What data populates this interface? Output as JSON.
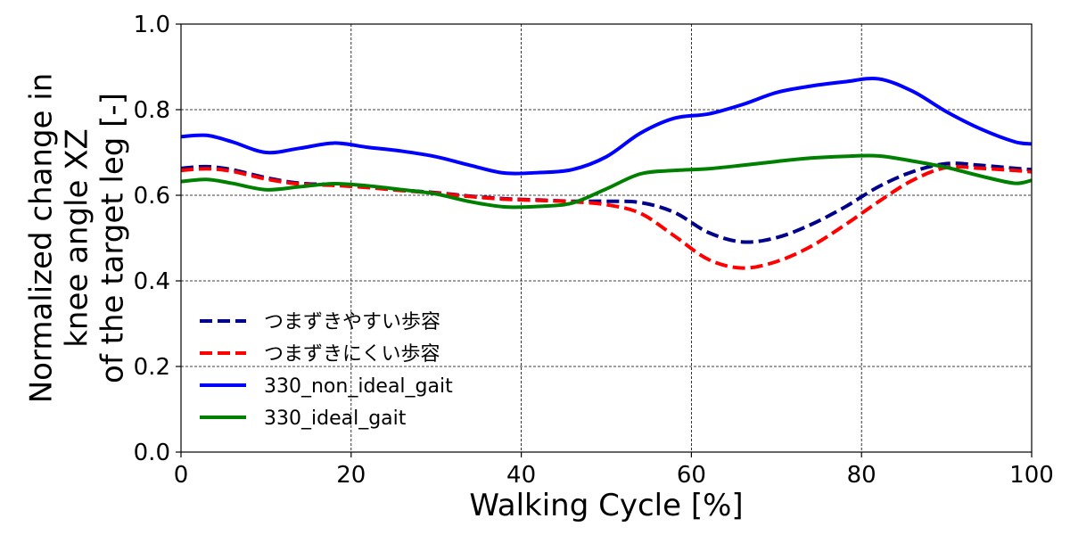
{
  "chart_data": {
    "type": "line",
    "xlabel": "Walking Cycle [%]",
    "ylabel_lines": [
      "Normalized change in",
      "knee angle XZ",
      "of the target leg [-]"
    ],
    "xlim": [
      0,
      100
    ],
    "ylim": [
      0.0,
      1.0
    ],
    "x_ticks": [
      "0",
      "20",
      "40",
      "60",
      "80",
      "100"
    ],
    "y_ticks": [
      "0.0",
      "0.2",
      "0.4",
      "0.6",
      "0.8",
      "1.0"
    ],
    "grid": true,
    "legend_position": "lower-left",
    "x": [
      0,
      3,
      6,
      10,
      14,
      18,
      22,
      26,
      30,
      34,
      38,
      42,
      46,
      50,
      54,
      58,
      62,
      66,
      70,
      74,
      78,
      82,
      86,
      90,
      94,
      98,
      100
    ],
    "series": [
      {
        "name": "つまずきやすい歩容",
        "color": "#00008b",
        "style": "dashed",
        "values": [
          0.663,
          0.667,
          0.66,
          0.641,
          0.628,
          0.625,
          0.619,
          0.612,
          0.606,
          0.598,
          0.592,
          0.589,
          0.586,
          0.586,
          0.583,
          0.56,
          0.513,
          0.491,
          0.501,
          0.531,
          0.572,
          0.62,
          0.655,
          0.674,
          0.67,
          0.663,
          0.66
        ]
      },
      {
        "name": "つまずきにくい歩容",
        "color": "#ff0000",
        "style": "dashed",
        "values": [
          0.658,
          0.662,
          0.656,
          0.638,
          0.626,
          0.623,
          0.618,
          0.611,
          0.605,
          0.597,
          0.591,
          0.588,
          0.585,
          0.578,
          0.558,
          0.505,
          0.45,
          0.43,
          0.445,
          0.48,
          0.53,
          0.585,
          0.635,
          0.665,
          0.663,
          0.658,
          0.655
        ]
      },
      {
        "name": "330_non_ideal_gait",
        "color": "#0000ff",
        "style": "solid",
        "values": [
          0.737,
          0.74,
          0.725,
          0.7,
          0.71,
          0.722,
          0.712,
          0.703,
          0.69,
          0.67,
          0.652,
          0.653,
          0.66,
          0.69,
          0.745,
          0.78,
          0.79,
          0.812,
          0.84,
          0.855,
          0.865,
          0.872,
          0.843,
          0.795,
          0.755,
          0.725,
          0.72
        ]
      },
      {
        "name": "330_ideal_gait",
        "color": "#008000",
        "style": "solid",
        "values": [
          0.632,
          0.637,
          0.628,
          0.613,
          0.62,
          0.627,
          0.622,
          0.613,
          0.603,
          0.585,
          0.573,
          0.574,
          0.582,
          0.615,
          0.65,
          0.658,
          0.662,
          0.67,
          0.679,
          0.687,
          0.691,
          0.692,
          0.68,
          0.665,
          0.645,
          0.628,
          0.635
        ]
      }
    ]
  }
}
